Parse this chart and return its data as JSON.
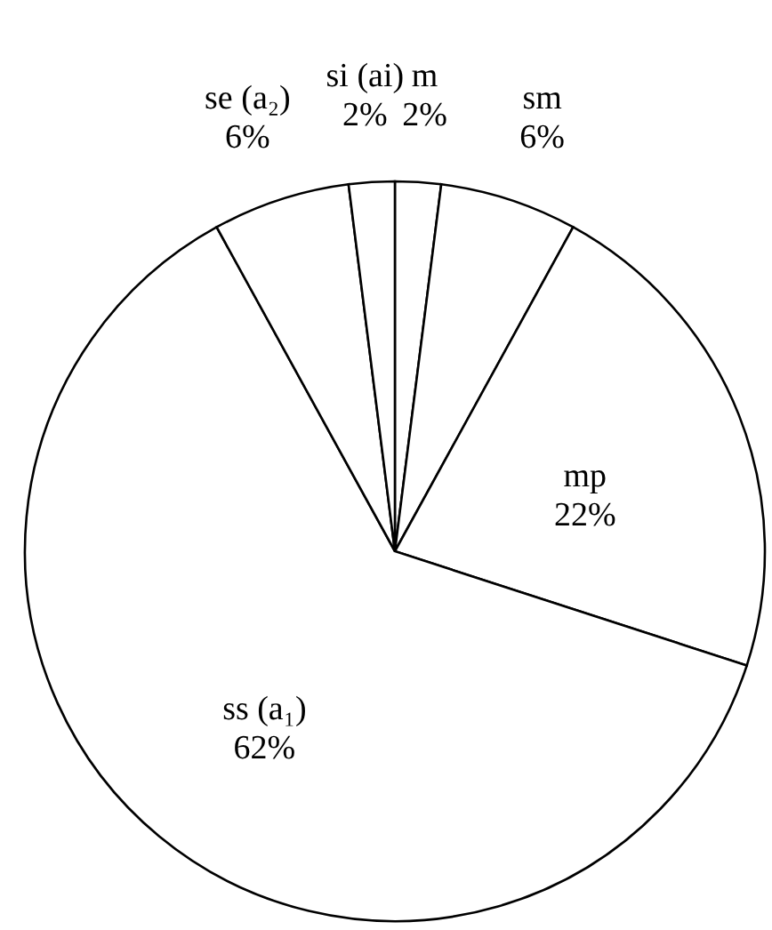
{
  "chart_data": {
    "type": "pie",
    "categories": [
      "m",
      "sm",
      "mp",
      "ss (a₁)",
      "se (a₂)",
      "si (ai)"
    ],
    "values": [
      2,
      6,
      22,
      62,
      6,
      2
    ],
    "value_labels": [
      "2%",
      "6%",
      "22%",
      "62%",
      "6%",
      "2%"
    ],
    "colors": [
      "#ffffff",
      "#ffffff",
      "#ffffff",
      "#ffffff",
      "#ffffff",
      "#ffffff"
    ]
  }
}
